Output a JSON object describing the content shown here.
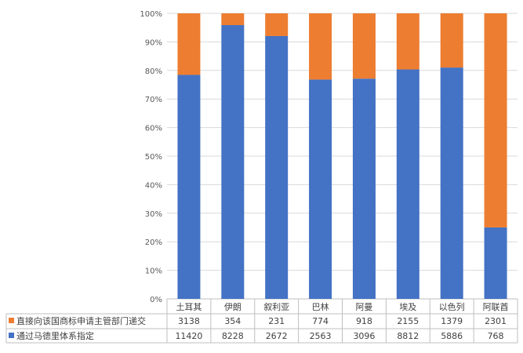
{
  "chart_data": {
    "type": "bar",
    "stacking": "percent",
    "categories": [
      "土耳其",
      "伊朗",
      "叙利亚",
      "巴林",
      "阿曼",
      "埃及",
      "以色列",
      "阿联酋"
    ],
    "series": [
      {
        "name": "直接向该国商标申请主管部门递交",
        "color": "#ED7D31",
        "values": [
          3138,
          354,
          231,
          774,
          918,
          2155,
          1379,
          2301
        ]
      },
      {
        "name": "通过马德里体系指定",
        "color": "#4472C4",
        "values": [
          11420,
          8228,
          2672,
          2563,
          3096,
          8812,
          5886,
          768
        ]
      }
    ],
    "y_ticks": [
      "0%",
      "10%",
      "20%",
      "30%",
      "40%",
      "50%",
      "60%",
      "70%",
      "80%",
      "90%",
      "100%"
    ],
    "ylim": [
      0,
      100
    ],
    "grid": true,
    "data_table": true
  }
}
